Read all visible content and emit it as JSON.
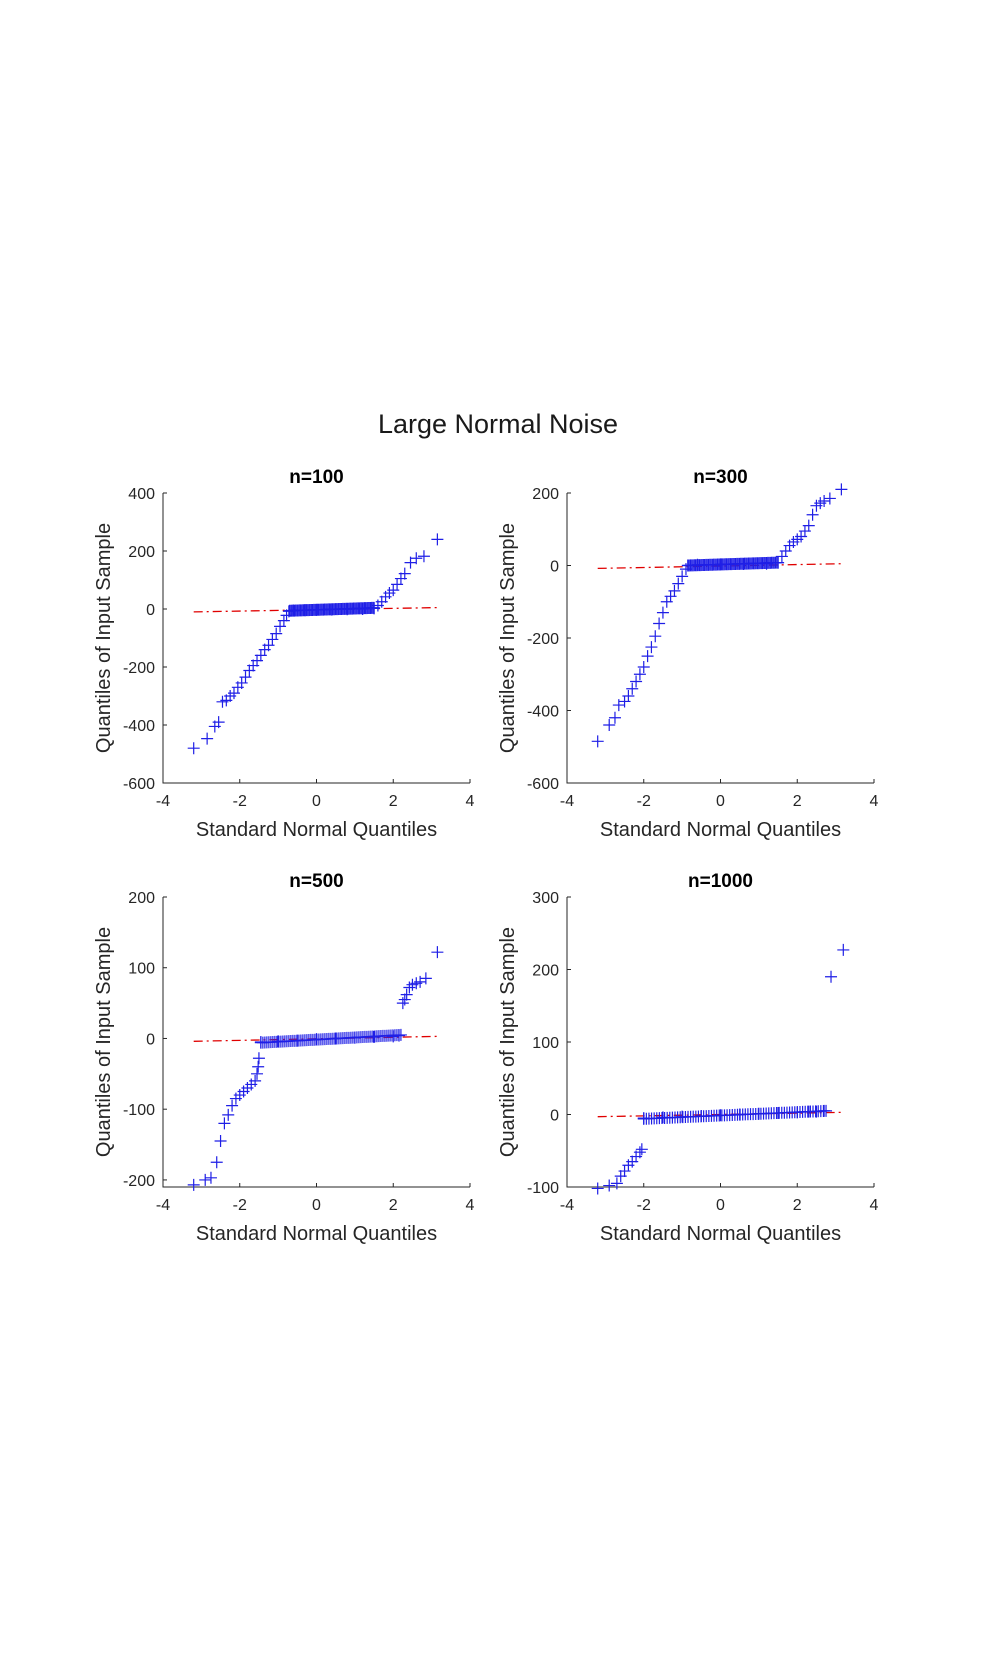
{
  "figure": {
    "title": "Large Normal Noise"
  },
  "colors": {
    "marker": "#1f1fe6",
    "reference_line": "#e00000",
    "axis": "#262626"
  },
  "chart_data": [
    {
      "type": "scatter",
      "title": "n=100",
      "xlabel": "Standard Normal Quantiles",
      "ylabel": "Quantiles of Input Sample",
      "xlim": [
        -4,
        4
      ],
      "ylim": [
        -600,
        400
      ],
      "xticks": [
        "-4",
        "-2",
        "0",
        "2",
        "4"
      ],
      "yticks": [
        "400",
        "200",
        "0",
        "-200",
        "-400",
        "-600"
      ],
      "marker": "+",
      "points": [
        [
          -3.2,
          -480
        ],
        [
          -2.85,
          -447
        ],
        [
          -2.65,
          -405
        ],
        [
          -2.55,
          -390
        ],
        [
          -2.45,
          -320
        ],
        [
          -2.35,
          -315
        ],
        [
          -2.25,
          -300
        ],
        [
          -2.15,
          -290
        ],
        [
          -2.05,
          -270
        ],
        [
          -1.95,
          -255
        ],
        [
          -1.85,
          -235
        ],
        [
          -1.75,
          -212
        ],
        [
          -1.65,
          -195
        ],
        [
          -1.55,
          -178
        ],
        [
          -1.45,
          -160
        ],
        [
          -1.35,
          -140
        ],
        [
          -1.25,
          -125
        ],
        [
          -1.15,
          -105
        ],
        [
          -1.05,
          -85
        ],
        [
          -0.95,
          -60
        ],
        [
          -0.85,
          -40
        ],
        [
          -0.78,
          -22
        ],
        [
          -0.72,
          -8
        ],
        [
          -0.6,
          -5
        ],
        [
          -0.3,
          -4
        ],
        [
          0.0,
          -3
        ],
        [
          0.4,
          -2
        ],
        [
          0.8,
          -1
        ],
        [
          1.2,
          0
        ],
        [
          1.5,
          2
        ],
        [
          1.6,
          12
        ],
        [
          1.7,
          25
        ],
        [
          1.8,
          42
        ],
        [
          1.9,
          55
        ],
        [
          2.0,
          65
        ],
        [
          2.1,
          85
        ],
        [
          2.2,
          105
        ],
        [
          2.3,
          122
        ],
        [
          2.45,
          160
        ],
        [
          2.6,
          175
        ],
        [
          2.8,
          182
        ],
        [
          3.15,
          240
        ]
      ],
      "dense_segments": [
        {
          "x_from": -0.7,
          "x_to": 1.5,
          "y_from": -6,
          "y_to": 4
        }
      ],
      "reference_line": {
        "x": [
          -3.2,
          3.2
        ],
        "y": [
          -10,
          5
        ]
      }
    },
    {
      "type": "scatter",
      "title": "n=300",
      "xlabel": "Standard Normal Quantiles",
      "ylabel": "Quantiles of Input Sample",
      "xlim": [
        -4,
        4
      ],
      "ylim": [
        -600,
        200
      ],
      "xticks": [
        "-4",
        "-2",
        "0",
        "2",
        "4"
      ],
      "yticks": [
        "200",
        "0",
        "-200",
        "-400",
        "-600"
      ],
      "marker": "+",
      "points": [
        [
          -3.2,
          -485
        ],
        [
          -2.9,
          -440
        ],
        [
          -2.75,
          -420
        ],
        [
          -2.65,
          -385
        ],
        [
          -2.5,
          -375
        ],
        [
          -2.4,
          -360
        ],
        [
          -2.3,
          -340
        ],
        [
          -2.2,
          -320
        ],
        [
          -2.1,
          -300
        ],
        [
          -2.0,
          -280
        ],
        [
          -1.9,
          -250
        ],
        [
          -1.8,
          -225
        ],
        [
          -1.7,
          -195
        ],
        [
          -1.6,
          -160
        ],
        [
          -1.5,
          -130
        ],
        [
          -1.4,
          -100
        ],
        [
          -1.3,
          -85
        ],
        [
          -1.2,
          -70
        ],
        [
          -1.1,
          -50
        ],
        [
          -1.0,
          -30
        ],
        [
          -0.9,
          -10
        ],
        [
          -0.85,
          0
        ],
        [
          -0.6,
          2
        ],
        [
          0.0,
          3
        ],
        [
          0.6,
          4
        ],
        [
          1.2,
          5
        ],
        [
          1.5,
          8
        ],
        [
          1.6,
          25
        ],
        [
          1.7,
          40
        ],
        [
          1.8,
          55
        ],
        [
          1.9,
          65
        ],
        [
          2.0,
          72
        ],
        [
          2.1,
          80
        ],
        [
          2.2,
          95
        ],
        [
          2.3,
          110
        ],
        [
          2.4,
          140
        ],
        [
          2.5,
          165
        ],
        [
          2.6,
          172
        ],
        [
          2.7,
          178
        ],
        [
          2.85,
          185
        ],
        [
          3.15,
          210
        ]
      ],
      "dense_segments": [
        {
          "x_from": -0.85,
          "x_to": 1.5,
          "y_from": 0,
          "y_to": 8
        }
      ],
      "reference_line": {
        "x": [
          -3.2,
          3.2
        ],
        "y": [
          -8,
          5
        ]
      }
    },
    {
      "type": "scatter",
      "title": "n=500",
      "xlabel": "Standard Normal Quantiles",
      "ylabel": "Quantiles of Input Sample",
      "xlim": [
        -4,
        4
      ],
      "ylim": [
        -210,
        200
      ],
      "xticks": [
        "-4",
        "-2",
        "0",
        "2",
        "4"
      ],
      "yticks": [
        "200",
        "100",
        "0",
        "-100",
        "-200"
      ],
      "marker": "+",
      "points": [
        [
          -3.2,
          -207
        ],
        [
          -2.9,
          -200
        ],
        [
          -2.75,
          -197
        ],
        [
          -2.6,
          -175
        ],
        [
          -2.5,
          -145
        ],
        [
          -2.4,
          -120
        ],
        [
          -2.3,
          -108
        ],
        [
          -2.2,
          -95
        ],
        [
          -2.1,
          -85
        ],
        [
          -2.0,
          -80
        ],
        [
          -1.9,
          -75
        ],
        [
          -1.8,
          -70
        ],
        [
          -1.7,
          -65
        ],
        [
          -1.6,
          -60
        ],
        [
          -1.55,
          -50
        ],
        [
          -1.52,
          -40
        ],
        [
          -1.5,
          -28
        ],
        [
          -1.45,
          -5
        ],
        [
          -1.0,
          -4
        ],
        [
          -0.5,
          -3
        ],
        [
          0.0,
          -1
        ],
        [
          0.5,
          0
        ],
        [
          1.0,
          1
        ],
        [
          1.5,
          2
        ],
        [
          2.0,
          3
        ],
        [
          2.15,
          4
        ],
        [
          2.25,
          50
        ],
        [
          2.3,
          55
        ],
        [
          2.35,
          62
        ],
        [
          2.42,
          72
        ],
        [
          2.5,
          76
        ],
        [
          2.6,
          78
        ],
        [
          2.7,
          80
        ],
        [
          2.85,
          85
        ],
        [
          3.15,
          122
        ]
      ],
      "dense_segments": [
        {
          "x_from": -1.45,
          "x_to": 2.2,
          "y_from": -6,
          "y_to": 5
        }
      ],
      "reference_line": {
        "x": [
          -3.2,
          3.2
        ],
        "y": [
          -4,
          3
        ]
      }
    },
    {
      "type": "scatter",
      "title": "n=1000",
      "xlabel": "Standard Normal Quantiles",
      "ylabel": "Quantiles of Input Sample",
      "xlim": [
        -4,
        4
      ],
      "ylim": [
        -100,
        300
      ],
      "xticks": [
        "-4",
        "-2",
        "0",
        "2",
        "4"
      ],
      "yticks": [
        "300",
        "200",
        "100",
        "0",
        "-100"
      ],
      "marker": "+",
      "points": [
        [
          -3.2,
          -102
        ],
        [
          -2.9,
          -98
        ],
        [
          -2.7,
          -95
        ],
        [
          -2.6,
          -85
        ],
        [
          -2.5,
          -78
        ],
        [
          -2.4,
          -70
        ],
        [
          -2.3,
          -65
        ],
        [
          -2.2,
          -58
        ],
        [
          -2.1,
          -52
        ],
        [
          -2.05,
          -48
        ],
        [
          -2.0,
          -5
        ],
        [
          -1.5,
          -4
        ],
        [
          -1.0,
          -3
        ],
        [
          -0.5,
          -2
        ],
        [
          0.0,
          -1
        ],
        [
          0.5,
          0
        ],
        [
          1.0,
          1
        ],
        [
          1.5,
          2
        ],
        [
          2.0,
          3
        ],
        [
          2.3,
          4
        ],
        [
          2.5,
          4
        ],
        [
          2.7,
          5
        ],
        [
          2.88,
          190
        ],
        [
          3.2,
          227
        ]
      ],
      "dense_segments": [
        {
          "x_from": -2.0,
          "x_to": 2.75,
          "y_from": -6,
          "y_to": 5
        }
      ],
      "reference_line": {
        "x": [
          -3.2,
          3.2
        ],
        "y": [
          -3,
          3
        ]
      }
    }
  ]
}
